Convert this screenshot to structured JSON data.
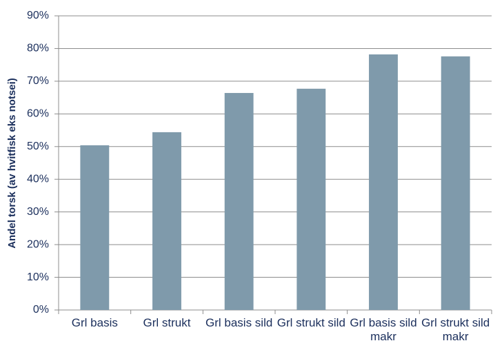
{
  "chart_data": {
    "type": "bar",
    "y_label": "Andel torsk (av hvitfisk eks notsei)",
    "categories": [
      "Grl basis",
      "Grl strukt",
      "Grl basis sild",
      "Grl strukt sild",
      "Grl basis sild makr",
      "Grl strukt sild makr"
    ],
    "values": [
      50.4,
      54.4,
      66.4,
      67.7,
      78.2,
      77.6
    ],
    "color": "#7f9aab",
    "ylim": [
      0,
      90
    ],
    "yticks": [
      {
        "value": 0,
        "label": "0%"
      },
      {
        "value": 10,
        "label": "10%"
      },
      {
        "value": 20,
        "label": "20%"
      },
      {
        "value": 30,
        "label": "30%"
      },
      {
        "value": 40,
        "label": "40%"
      },
      {
        "value": 50,
        "label": "50%"
      },
      {
        "value": 60,
        "label": "60%"
      },
      {
        "value": 70,
        "label": "70%"
      },
      {
        "value": 80,
        "label": "80%"
      },
      {
        "value": 90,
        "label": "90%"
      }
    ],
    "grid": true
  }
}
